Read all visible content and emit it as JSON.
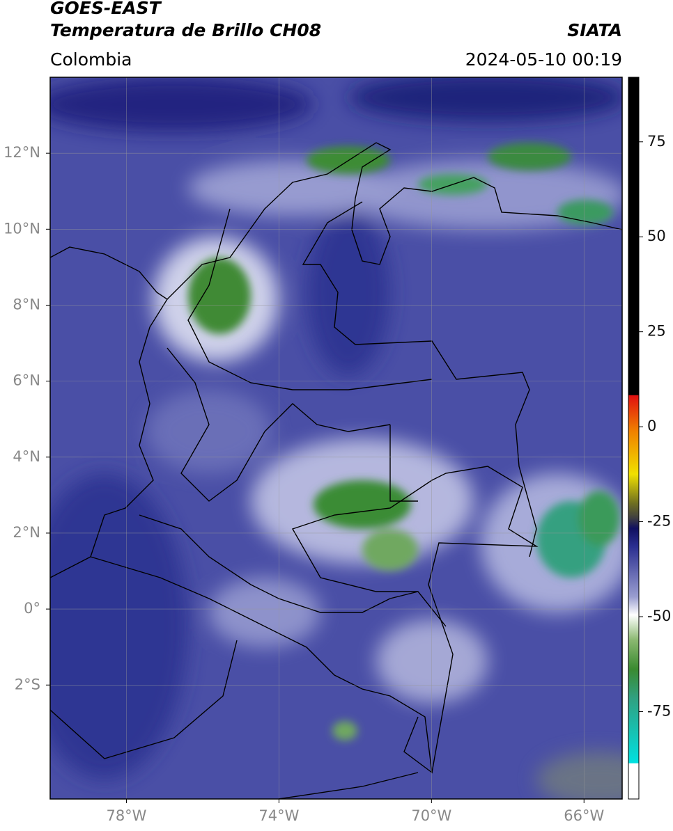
{
  "header": {
    "title": "GOES-EAST",
    "subtitle": "Temperatura de Brillo CH08",
    "region": "Colombia",
    "source": "SIATA",
    "timestamp": "2024-05-10 00:19"
  },
  "map": {
    "lon_range": [
      -80,
      -65
    ],
    "lat_range": [
      -5,
      14
    ],
    "grid": true,
    "lon_ticks": [
      {
        "value": -78,
        "label": "78°W"
      },
      {
        "value": -74,
        "label": "74°W"
      },
      {
        "value": -70,
        "label": "70°W"
      },
      {
        "value": -66,
        "label": "66°W"
      }
    ],
    "lat_ticks": [
      {
        "value": 12,
        "label": "12°N"
      },
      {
        "value": 10,
        "label": "10°N"
      },
      {
        "value": 8,
        "label": "8°N"
      },
      {
        "value": 6,
        "label": "6°N"
      },
      {
        "value": 4,
        "label": "4°N"
      },
      {
        "value": 2,
        "label": "2°N"
      },
      {
        "value": 0,
        "label": "0°"
      },
      {
        "value": -2,
        "label": "2°S"
      }
    ]
  },
  "colorbar": {
    "range": [
      -98,
      92
    ],
    "ticks": [
      75,
      50,
      25,
      0,
      -25,
      -50,
      -75
    ]
  }
}
